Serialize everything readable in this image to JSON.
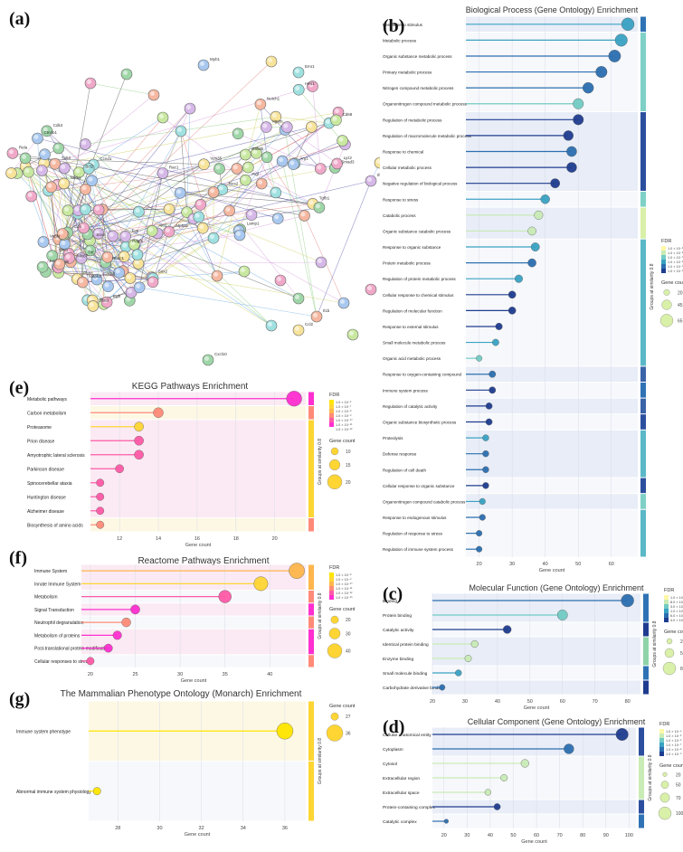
{
  "panel_labels": {
    "a": "(a)",
    "b": "(b)",
    "c": "(c)",
    "d": "(d)",
    "e": "(e)",
    "f": "(f)",
    "g": "(g)"
  },
  "colors": {
    "bp_scale": [
      "#1f3d8f",
      "#2c6fb0",
      "#3aa2c3",
      "#72cbc4",
      "#c9ebb6",
      "#fff8a8"
    ],
    "kegg_scale": [
      "#ff2fd0",
      "#ff5aa7",
      "#ff8b78",
      "#ffb64c",
      "#ffd534",
      "#ffe600"
    ],
    "band_blue": "#e8edf7",
    "band_pink": "#fbeaf3",
    "band_yellow": "#fdf8e4"
  },
  "network": {
    "node_labels": [
      "Wnt1",
      "Sox2",
      "Sox9",
      "Nfatc1",
      "Pdgfb",
      "Mki67",
      "Ptprc",
      "Cd4",
      "Tnf",
      "Il6",
      "Casp3",
      "Akt1",
      "Mapk1",
      "Stat3",
      "Jun",
      "Fos",
      "Egfr",
      "Vegfa",
      "Bcl2",
      "Tp53",
      "Ccnd1",
      "Cdk4",
      "Nfkb1",
      "Rela",
      "Ctnnb1",
      "Gsk3b",
      "Notch1",
      "Hes1",
      "Smad3",
      "Tgfb1",
      "Lyz2",
      "Itgam",
      "Cd68",
      "Arg1",
      "Nos2",
      "Lamp1",
      "Vps35",
      "Atp5a1",
      "Rac1",
      "Pigf",
      "Myh1",
      "Emr1",
      "Il1b",
      "Ccl2",
      "Cxcl10",
      "Ifng"
    ]
  },
  "chart_data": [
    {
      "id": "bp",
      "type": "bar",
      "title": "Biological Process (Gene Ontology) Enrichment",
      "xlabel": "Gene count",
      "xlim": [
        16,
        68
      ],
      "xticks": [
        20,
        30,
        40,
        50,
        60
      ],
      "legend_title": "FDR",
      "legend_ticks": [
        "1.0 × 10⁻⁵",
        "1.0 × 10⁻⁶",
        "1.0 × 10⁻⁷",
        "1.0 × 10⁻⁸",
        "1.0 × 10⁻⁹",
        "1.0 × 10⁻¹⁰"
      ],
      "group_label": "Groups at similarity 0.8",
      "size_title": "Gene count",
      "size_values": [
        20,
        45,
        65
      ],
      "categories": [
        "Response to stimulus",
        "Metabolic process",
        "Organic substance metabolic process",
        "Primary metabolic process",
        "Nitrogen compound metabolic process",
        "Organonitrogen compound metabolic process",
        "Regulation of metabolic process",
        "Regulation of macromolecule metabolic process",
        "Response to chemical",
        "Cellular metabolic process",
        "Negative regulation of biological process",
        "Response to stress",
        "Catabolic process",
        "Organic substance catabolic process",
        "Response to organic substance",
        "Protein metabolic process",
        "Regulation of protein metabolic process",
        "Cellular response to chemical stimulus",
        "Regulation of molecular function",
        "Response to external stimulus",
        "Small molecule metabolic process",
        "Organic acid metabolic process",
        "Response to oxygen-containing compound",
        "Immune system process",
        "Regulation of catalytic activity",
        "Organic substance biosynthetic process",
        "Proteolysis",
        "Defense response",
        "Regulation of cell death",
        "Cellular response to organic substance",
        "Organonitrogen compound catabolic process",
        "Response to endogenous stimulus",
        "Regulation of response to stress",
        "Regulation of immune system process"
      ],
      "values": [
        65,
        63,
        61,
        57,
        53,
        50,
        50,
        47,
        48,
        48,
        43,
        40,
        38,
        36,
        37,
        36,
        32,
        30,
        30,
        26,
        25,
        20,
        24,
        24,
        23,
        23,
        22,
        22,
        22,
        22,
        21,
        21,
        20,
        20
      ],
      "color_index": [
        2,
        2,
        1,
        1,
        1,
        3,
        0,
        0,
        1,
        0,
        0,
        2,
        4,
        4,
        2,
        1,
        2,
        0,
        0,
        0,
        2,
        3,
        1,
        0,
        0,
        0,
        2,
        1,
        1,
        0,
        2,
        1,
        1,
        1
      ],
      "groups": [
        [
          0,
          0,
          "#2f73b5"
        ],
        [
          1,
          5,
          "#7fd0c6"
        ],
        [
          6,
          10,
          "#2b4f9e"
        ],
        [
          11,
          11,
          "#7fd0c6"
        ],
        [
          12,
          13,
          "#d9f0a8"
        ],
        [
          14,
          21,
          "#5bb8c7"
        ],
        [
          22,
          22,
          "#3a63a8"
        ],
        [
          23,
          23,
          "#2f73b5"
        ],
        [
          24,
          24,
          "#3a63a8"
        ],
        [
          25,
          25,
          "#2b4f9e"
        ],
        [
          26,
          28,
          "#5bb8c7"
        ],
        [
          29,
          29,
          "#2b4f9e"
        ],
        [
          30,
          30,
          "#7fd0c6"
        ],
        [
          31,
          33,
          "#5bb8c7"
        ]
      ]
    },
    {
      "id": "mf",
      "type": "bar",
      "title": "Molecular Function (Gene Ontology) Enrichment",
      "xlabel": "Gene count",
      "xlim": [
        20,
        84
      ],
      "xticks": [
        20,
        30,
        40,
        50,
        60,
        70,
        80
      ],
      "legend_title": "FDR",
      "legend_ticks": [
        "1.0 × 10⁻⁵",
        "8.0 × 10⁻⁴",
        "3.0 × 10⁻⁴",
        "1.0 × 10⁻⁴",
        "6.0 × 10⁻⁵",
        "4.0 × 10⁻⁵"
      ],
      "group_label": "Groups at similarity 0.8",
      "size_title": "Gene count",
      "size_values": [
        20,
        50,
        80
      ],
      "categories": [
        "Binding",
        "Protein binding",
        "Catalytic activity",
        "Identical protein binding",
        "Enzyme binding",
        "Small molecule binding",
        "Carbohydrate derivative binding"
      ],
      "values": [
        80,
        60,
        43,
        33,
        31,
        28,
        23
      ],
      "color_index": [
        1,
        3,
        0,
        4,
        4,
        2,
        1
      ],
      "groups": [
        [
          0,
          1,
          "#2f73b5"
        ],
        [
          2,
          2,
          "#1f3d8f"
        ],
        [
          3,
          4,
          "#8fd4a8"
        ],
        [
          5,
          5,
          "#2f73b5"
        ],
        [
          6,
          6,
          "#1f3d8f"
        ]
      ]
    },
    {
      "id": "cc",
      "type": "bar",
      "title": "Cellular Component (Gene Ontology) Enrichment",
      "xlabel": "Gene count",
      "xlim": [
        15,
        103
      ],
      "xticks": [
        20,
        30,
        40,
        50,
        60,
        70,
        80,
        90,
        100
      ],
      "legend_title": "FDR",
      "legend_ticks": [
        "1.0 × 10⁻⁴",
        "1.0 × 10⁻⁵",
        "1.0 × 10⁻⁶",
        "1.0 × 10⁻⁷",
        "1.0 × 10⁻⁸",
        "1.0 × 10⁻⁹"
      ],
      "group_label": "Groups at similarity 0.8",
      "size_title": "Gene count",
      "size_values": [
        20,
        50,
        70,
        100
      ],
      "categories": [
        "Cellular anatomical entity",
        "Cytoplasm",
        "Cytosol",
        "Extracellular region",
        "Extracellular space",
        "Protein-containing complex",
        "Catalytic complex"
      ],
      "values": [
        97,
        74,
        55,
        46,
        39,
        43,
        21
      ],
      "color_index": [
        0,
        1,
        4,
        4,
        4,
        0,
        1
      ],
      "groups": [
        [
          0,
          1,
          "#2b4f9e"
        ],
        [
          2,
          4,
          "#c9ebb6"
        ],
        [
          5,
          5,
          "#2b4f9e"
        ],
        [
          6,
          6,
          "#2f73b5"
        ]
      ]
    },
    {
      "id": "kegg",
      "type": "bar",
      "title": "KEGG Pathways Enrichment",
      "xlabel": "Gene count",
      "xlim": [
        10.5,
        21.6
      ],
      "xticks": [
        12,
        14,
        16,
        18,
        20
      ],
      "legend_title": "FDR",
      "legend_ticks": [
        "1.0 × 10⁻⁶",
        "1.0 × 10⁻⁷",
        "1.0 × 10⁻⁸",
        "1.0 × 10⁻⁹",
        "1.0 × 10⁻¹⁰",
        "1.0 × 10⁻¹¹",
        "1.0 × 10⁻¹²"
      ],
      "group_label": "Groups at similarity 0.8",
      "size_title": "Gene count",
      "size_values": [
        10,
        15,
        20
      ],
      "categories": [
        "Metabolic pathways",
        "Carbon metabolism",
        "Proteasome",
        "Prion disease",
        "Amyotrophic lateral sclerosis",
        "Parkinson disease",
        "Spinocerebellar ataxia",
        "Huntington disease",
        "Alzheimer disease",
        "Biosynthesis of amino acids"
      ],
      "values": [
        21,
        14,
        13,
        13,
        13,
        12,
        11,
        11,
        11,
        11
      ],
      "color_index": [
        0,
        2,
        4,
        1,
        1,
        1,
        1,
        1,
        1,
        2
      ],
      "groups": [
        [
          0,
          0,
          "#ff2fd0"
        ],
        [
          1,
          1,
          "#ff8b78"
        ],
        [
          2,
          8,
          "#ffd534"
        ],
        [
          9,
          9,
          "#ff8b78"
        ]
      ]
    },
    {
      "id": "reactome",
      "type": "bar",
      "title": "Reactome Pathways Enrichment",
      "xlabel": "Gene count",
      "xlim": [
        19,
        44
      ],
      "xticks": [
        20,
        25,
        30,
        35,
        40
      ],
      "legend_title": "FDR",
      "legend_ticks": [
        "1.0 × 10⁻⁸",
        "1.0 × 10⁻⁹",
        "1.0 × 10⁻¹⁰",
        "1.0 × 10⁻¹¹",
        "1.0 × 10⁻¹²",
        "1.0 × 10⁻¹³"
      ],
      "group_label": "Groups at similarity 0.8",
      "size_title": "Gene count",
      "size_values": [
        20,
        30,
        40
      ],
      "categories": [
        "Immune System",
        "Innate Immune System",
        "Metabolism",
        "Signal Transduction",
        "Neutrophil degranulation",
        "Metabolism of proteins",
        "Post-translational protein modification",
        "Cellular responses to stress"
      ],
      "values": [
        43,
        39,
        35,
        25,
        24,
        23,
        22,
        20
      ],
      "color_index": [
        3,
        4,
        1,
        0,
        2,
        0,
        0,
        1
      ],
      "groups": [
        [
          0,
          1,
          "#ffb64c"
        ],
        [
          2,
          2,
          "#ff8b78"
        ],
        [
          3,
          3,
          "#ff2fd0"
        ],
        [
          4,
          4,
          "#ff8b78"
        ],
        [
          5,
          6,
          "#ff2fd0"
        ],
        [
          7,
          7,
          "#ff8b78"
        ]
      ]
    },
    {
      "id": "mp",
      "type": "bar",
      "title": "The Mammalian Phenotype Ontology (Monarch) Enrichment",
      "xlabel": "Gene count",
      "xlim": [
        26.6,
        37
      ],
      "xticks": [
        28,
        30,
        32,
        34,
        36
      ],
      "legend_title": "",
      "legend_ticks": [],
      "group_label": "Groups at similarity 0.8",
      "size_title": "Gene count",
      "size_values": [
        27,
        36
      ],
      "categories": [
        "Immune system phenotype",
        "Abnormal immune system physiology"
      ],
      "values": [
        36,
        27
      ],
      "color_index": [
        5,
        5
      ],
      "groups": [
        [
          0,
          0,
          "#ffd534"
        ],
        [
          1,
          1,
          "#ffd534"
        ]
      ]
    }
  ]
}
